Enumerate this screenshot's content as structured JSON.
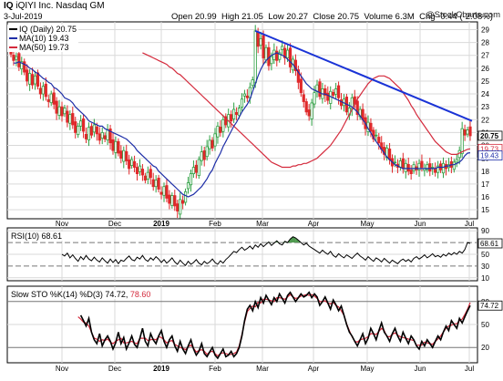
{
  "header": {
    "ticker": "IQ",
    "company": "iQIYI Inc. Nasdaq GM",
    "date": "3-Jul-2019",
    "open_label": "Open",
    "open": "20.99",
    "high_label": "High",
    "high": "21.05",
    "low_label": "Low",
    "low": "20.27",
    "close_label": "Close",
    "close": "20.75",
    "volume_label": "Volume",
    "volume": "6.3M",
    "chg_label": "Chg",
    "chg": "-0.44 (-2.08%)",
    "brand": "@StockCharts.com"
  },
  "legend": {
    "price": "IQ (Daily) 20.75",
    "ma10": "MA(10) 19.43",
    "ma50": "MA(50) 19.73",
    "rsi": "RSI(10) 68.61",
    "sto_main": "Slow STO %K(14) %D(3) 74.72,",
    "sto_d": "78.60"
  },
  "colors": {
    "up": "#2ea043",
    "down": "#e0282a",
    "ma10": "#1f2fa8",
    "ma50": "#d42a3c",
    "trend": "#1a33d6",
    "rsi_high": "#4f9a4f",
    "rsi_low": "#b24d6a"
  },
  "chart_data": [
    {
      "type": "candlestick",
      "title": "IQ (Daily)",
      "x_labels": [
        "Nov",
        "Dec",
        "2019",
        "Feb",
        "Mar",
        "Apr",
        "May",
        "Jun",
        "Jul"
      ],
      "y_ticks": [
        15,
        16,
        17,
        18,
        19,
        20,
        21,
        22,
        23,
        24,
        25,
        26,
        27,
        28,
        29
      ],
      "ylim": [
        14.3,
        29.6
      ],
      "grid": true,
      "price_tags": [
        "20.75",
        "19.73",
        "19.43"
      ],
      "series": [
        {
          "name": "IQ (Daily)",
          "close": [
            27.1,
            26.6,
            26.9,
            26.1,
            26.5,
            25.7,
            25.0,
            25.6,
            24.7,
            25.4,
            24.6,
            24.0,
            24.6,
            23.8,
            23.4,
            24.0,
            23.2,
            22.5,
            23.0,
            22.3,
            22.9,
            21.8,
            22.4,
            21.6,
            21.0,
            21.5,
            21.9,
            21.1,
            20.5,
            21.4,
            20.8,
            21.6,
            20.9,
            20.4,
            21.0,
            20.5,
            21.2,
            20.2,
            19.6,
            20.3,
            19.4,
            19.0,
            19.6,
            18.8,
            18.2,
            18.9,
            18.3,
            17.8,
            18.4,
            17.7,
            17.3,
            17.9,
            17.5,
            16.8,
            17.3,
            16.6,
            16.2,
            16.8,
            15.9,
            15.5,
            16.1,
            15.3,
            14.9,
            15.8,
            15.5,
            16.4,
            17.1,
            17.8,
            18.3,
            17.9,
            18.9,
            19.5,
            18.9,
            19.9,
            20.4,
            19.8,
            20.9,
            21.5,
            21.0,
            22.0,
            21.6,
            22.4,
            21.9,
            22.8,
            22.4,
            22.9,
            23.6,
            24.0,
            23.7,
            24.5,
            25.1,
            28.9,
            27.7,
            28.3,
            26.8,
            27.6,
            26.2,
            26.9,
            27.4,
            26.6,
            27.2,
            27.7,
            26.8,
            27.4,
            26.1,
            26.7,
            25.8,
            24.9,
            24.1,
            23.4,
            22.6,
            22.3,
            23.3,
            24.1,
            24.7,
            23.8,
            24.4,
            23.9,
            23.5,
            24.2,
            23.9,
            24.4,
            23.7,
            23.1,
            23.6,
            22.6,
            22.9,
            23.7,
            23.2,
            22.4,
            22.8,
            22.0,
            21.3,
            21.8,
            21.1,
            20.5,
            20.8,
            20.2,
            19.7,
            19.3,
            19.8,
            18.9,
            18.4,
            18.7,
            18.3,
            18.8,
            18.2,
            18.6,
            18.0,
            17.8,
            18.5,
            18.1,
            18.6,
            18.3,
            18.2,
            18.5,
            18.0,
            18.3,
            17.9,
            18.4,
            18.1,
            18.6,
            18.2,
            18.5,
            18.3,
            18.7,
            18.9,
            19.6,
            21.3,
            20.8,
            21.2,
            20.75
          ]
        },
        {
          "name": "MA(10)",
          "values": [
            26.4,
            26.4,
            26.5,
            26.4,
            26.3,
            26.2,
            26.0,
            25.9,
            25.7,
            25.6,
            25.4,
            25.2,
            25.1,
            24.9,
            24.8,
            24.5,
            24.4,
            24.2,
            24.0,
            23.7,
            23.6,
            23.5,
            23.3,
            23.0,
            22.8,
            22.6,
            22.4,
            22.2,
            21.9,
            21.8,
            21.7,
            21.6,
            21.5,
            21.5,
            21.3,
            21.2,
            21.1,
            21.0,
            20.9,
            20.8,
            20.7,
            20.6,
            20.5,
            20.3,
            20.1,
            19.9,
            19.6,
            19.4,
            19.2,
            19.0,
            18.8,
            18.6,
            18.4,
            18.3,
            18.0,
            17.8,
            17.6,
            17.4,
            17.2,
            17.0,
            16.8,
            16.6,
            16.4,
            16.2,
            16.1,
            16.0,
            16.1,
            16.2,
            16.4,
            16.6,
            16.8,
            17.1,
            17.4,
            17.8,
            18.1,
            18.6,
            19.0,
            19.4,
            19.9,
            20.3,
            20.7,
            21.1,
            21.5,
            21.8,
            22.2,
            22.6,
            22.9,
            23.2,
            23.6,
            24.2,
            24.8,
            25.4,
            25.9,
            26.3,
            26.6,
            26.8,
            27.0,
            27.1,
            27.2,
            27.1,
            27.0,
            26.9,
            26.7,
            26.5,
            26.3,
            26.0,
            25.7,
            25.4,
            25.1,
            24.8,
            24.6,
            24.4,
            24.3,
            24.2,
            24.1,
            24.0,
            24.0,
            23.9,
            23.8,
            23.7,
            23.6,
            23.5,
            23.4,
            23.3,
            23.2,
            23.1,
            23.0,
            22.8,
            22.6,
            22.3,
            22.0,
            21.7,
            21.3,
            21.0,
            20.6,
            20.3,
            20.0,
            19.7,
            19.4,
            19.1,
            18.9,
            18.7,
            18.5,
            18.4,
            18.3,
            18.2,
            18.2,
            18.2,
            18.2,
            18.2,
            18.2,
            18.2,
            18.2,
            18.2,
            18.2,
            18.2,
            18.2,
            18.2,
            18.3,
            18.3,
            18.3,
            18.4,
            18.4,
            18.5,
            18.5,
            18.6,
            18.7,
            18.9,
            19.2,
            19.4,
            19.43
          ]
        },
        {
          "name": "MA(50)",
          "values": [
            27.2,
            27.1,
            27.0,
            26.9,
            26.8,
            26.7,
            26.6,
            26.5,
            26.4,
            26.3,
            26.1,
            26.0,
            25.8,
            25.6,
            25.5,
            25.3,
            25.1,
            24.9,
            24.7,
            24.5,
            24.3,
            24.1,
            23.9,
            23.7,
            23.5,
            23.3,
            23.1,
            22.9,
            22.7,
            22.5,
            22.3,
            22.1,
            21.9,
            21.7,
            21.5,
            21.3,
            21.1,
            20.9,
            20.7,
            20.5,
            20.3,
            20.1,
            19.9,
            19.7,
            19.5,
            19.3,
            19.1,
            18.9,
            18.7,
            18.6,
            18.5,
            18.4,
            18.3,
            18.3,
            18.3,
            18.3,
            18.4,
            18.4,
            18.5,
            18.5,
            18.6,
            18.6,
            18.7,
            18.8,
            18.9,
            19.0,
            19.2,
            19.4,
            19.6,
            19.8,
            20.0,
            20.3,
            20.6,
            20.9,
            21.2,
            21.6,
            22.0,
            22.4,
            22.8,
            23.2,
            23.6,
            23.9,
            24.2,
            24.5,
            24.8,
            25.0,
            25.2,
            25.3,
            25.4,
            25.4,
            25.4,
            25.3,
            25.2,
            25.0,
            24.8,
            24.6,
            24.4,
            24.1,
            23.8,
            23.5,
            23.1,
            22.8,
            22.4,
            22.1,
            21.8,
            21.5,
            21.2,
            20.9,
            20.6,
            20.3,
            20.1,
            19.9,
            19.7,
            19.5,
            19.4,
            19.3,
            19.3,
            19.3,
            19.4,
            19.5,
            19.6,
            19.7,
            19.73
          ]
        },
        {
          "name": "Trendline",
          "from": 28.9,
          "to": 21.9
        }
      ]
    },
    {
      "type": "line",
      "title": "RSI(10)",
      "y_ticks": [
        10,
        30,
        50,
        70,
        90
      ],
      "ylim": [
        5,
        95
      ],
      "price_tags": [
        "68.61"
      ],
      "series": [
        {
          "name": "RSI(10)",
          "values": [
            50,
            47,
            52,
            44,
            49,
            43,
            38,
            46,
            41,
            48,
            42,
            39,
            45,
            40,
            37,
            44,
            39,
            35,
            42,
            36,
            41,
            34,
            40,
            38,
            43,
            47,
            41,
            39,
            45,
            42,
            48,
            41,
            38,
            44,
            40,
            46,
            42,
            36,
            41,
            35,
            39,
            44,
            37,
            33,
            40,
            35,
            31,
            38,
            33,
            36,
            41,
            35,
            32,
            38,
            34,
            37,
            42,
            36,
            33,
            39,
            35,
            41,
            45,
            50,
            55,
            53,
            58,
            62,
            57,
            60,
            64,
            59,
            66,
            62,
            68,
            63,
            67,
            71,
            65,
            69,
            73,
            68,
            66,
            72,
            70,
            76,
            80,
            78,
            74,
            70,
            66,
            69,
            64,
            61,
            58,
            55,
            52,
            57,
            53,
            50,
            55,
            48,
            45,
            51,
            47,
            44,
            49,
            46,
            43,
            48,
            52,
            47,
            44,
            40,
            46,
            42,
            38,
            44,
            41,
            37,
            43,
            39,
            35,
            40,
            37,
            34,
            39,
            42,
            38,
            41,
            37,
            43,
            46,
            42,
            45,
            49,
            44,
            47,
            51,
            46,
            48,
            45,
            50,
            47,
            52,
            49,
            53,
            50,
            55,
            52,
            58,
            70,
            68.61
          ]
        }
      ]
    },
    {
      "type": "line",
      "title": "Slow STO %K(14) %D(3)",
      "y_ticks": [
        20,
        50,
        80
      ],
      "ylim": [
        0,
        100
      ],
      "price_tags": [
        "74.72"
      ],
      "series": [
        {
          "name": "%K",
          "values": [
            62,
            55,
            48,
            58,
            40,
            30,
            25,
            38,
            22,
            30,
            35,
            28,
            18,
            26,
            40,
            25,
            33,
            18,
            26,
            35,
            24,
            20,
            32,
            45,
            28,
            22,
            38,
            30,
            25,
            35,
            42,
            28,
            20,
            30,
            35,
            22,
            15,
            28,
            18,
            12,
            22,
            30,
            18,
            10,
            15,
            25,
            12,
            8,
            14,
            20,
            10,
            6,
            12,
            18,
            8,
            10,
            15,
            8,
            12,
            20,
            35,
            55,
            70,
            75,
            68,
            80,
            72,
            85,
            78,
            88,
            82,
            76,
            85,
            80,
            90,
            84,
            78,
            88,
            92,
            86,
            80,
            85,
            90,
            86,
            88,
            92,
            85,
            90,
            86,
            75,
            80,
            86,
            78,
            70,
            82,
            76,
            68,
            74,
            62,
            50,
            40,
            35,
            28,
            22,
            30,
            38,
            25,
            32,
            45,
            38,
            30,
            42,
            52,
            40,
            35,
            28,
            38,
            45,
            35,
            28,
            40,
            32,
            25,
            35,
            30,
            22,
            18,
            28,
            22,
            30,
            25,
            20,
            28,
            35,
            30,
            40,
            48,
            42,
            55,
            50,
            45,
            58,
            52,
            60,
            68,
            74.72
          ]
        },
        {
          "name": "%D",
          "values": [
            60,
            57,
            53,
            52,
            48,
            40,
            32,
            31,
            28,
            30,
            29,
            31,
            27,
            25,
            28,
            30,
            32,
            26,
            26,
            27,
            28,
            26,
            25,
            32,
            32,
            32,
            29,
            30,
            31,
            30,
            34,
            33,
            30,
            26,
            28,
            29,
            24,
            22,
            20,
            19,
            17,
            21,
            23,
            19,
            14,
            16,
            17,
            15,
            11,
            14,
            15,
            12,
            9,
            12,
            13,
            12,
            11,
            11,
            12,
            14,
            22,
            37,
            53,
            67,
            71,
            74,
            73,
            79,
            78,
            83,
            83,
            82,
            81,
            80,
            85,
            85,
            84,
            83,
            86,
            89,
            86,
            84,
            85,
            87,
            88,
            89,
            88,
            89,
            87,
            84,
            80,
            80,
            81,
            78,
            77,
            79,
            75,
            73,
            68,
            62,
            51,
            42,
            34,
            28,
            27,
            30,
            31,
            32,
            34,
            38,
            38,
            37,
            41,
            45,
            42,
            34,
            34,
            37,
            39,
            36,
            34,
            33,
            32,
            31,
            30,
            29,
            23,
            23,
            23,
            27,
            26,
            25,
            24,
            28,
            31,
            35,
            40,
            45,
            48,
            49,
            51,
            51,
            55,
            57,
            63,
            70,
            78.6
          ]
        }
      ]
    }
  ]
}
